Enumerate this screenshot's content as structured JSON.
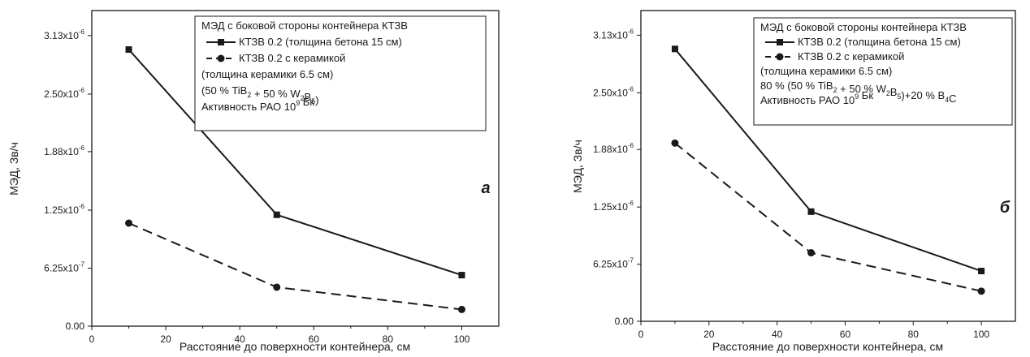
{
  "chart_data": [
    {
      "type": "line",
      "panel_label": "а",
      "xlabel": "Расстояние до поверхности контейнера, см",
      "ylabel": "МЭД, Зв/ч",
      "xlim": [
        0,
        110
      ],
      "ylim": [
        0,
        3.4e-06
      ],
      "x_ticks": [
        0,
        20,
        40,
        60,
        80,
        100
      ],
      "y_ticks": [
        0,
        6.25e-07,
        1.25e-06,
        1.88e-06,
        2.5e-06,
        3.13e-06
      ],
      "y_tick_mantissa": [
        "0.00",
        "6.25x10",
        "1.25x10",
        "1.88x10",
        "2.50x10",
        "3.13x10"
      ],
      "y_tick_exponent": [
        "",
        "-7",
        "-6",
        "-6",
        "-6",
        "-6"
      ],
      "legend_title": "МЭД с боковой стороны контейнера КТЗВ",
      "legend_extra": [
        [
          "(толщина керамики 6.5 см)"
        ],
        [
          "(50 % TiB",
          "2",
          " + 50 % W",
          "2",
          "B",
          "5",
          ")"
        ],
        [
          "Активность РАО 10",
          "9",
          " Бк"
        ]
      ],
      "series": [
        {
          "name": "КТЗВ 0.2 (толщина бетона 15 см)",
          "marker": "square",
          "dash": "solid",
          "x": [
            10,
            50,
            100
          ],
          "y": [
            2.98e-06,
            1.2e-06,
            5.5e-07
          ]
        },
        {
          "name": "КТЗВ 0.2 с керамикой",
          "marker": "circle",
          "dash": "dashed",
          "x": [
            10,
            50,
            100
          ],
          "y": [
            1.11e-06,
            4.2e-07,
            1.8e-07
          ]
        }
      ]
    },
    {
      "type": "line",
      "panel_label": "б",
      "xlabel": "Расстояние до поверхности контейнера, см",
      "ylabel": "МЭД, Зв/ч",
      "xlim": [
        0,
        110
      ],
      "ylim": [
        0,
        3.4e-06
      ],
      "x_ticks": [
        0,
        20,
        40,
        60,
        80,
        100
      ],
      "y_ticks": [
        0,
        6.25e-07,
        1.25e-06,
        1.88e-06,
        2.5e-06,
        3.13e-06
      ],
      "y_tick_mantissa": [
        "0.00",
        "6.25x10",
        "1.25x10",
        "1.88x10",
        "2.50x10",
        "3.13x10"
      ],
      "y_tick_exponent": [
        "",
        "-7",
        "-6",
        "-6",
        "-6",
        "-6"
      ],
      "legend_title": "МЭД с боковой стороны контейнера КТЗВ",
      "legend_extra": [
        [
          "(толщина керамики 6.5 см)"
        ],
        [
          "80 % (50 % TiB",
          "2",
          " + 50 % W",
          "2",
          "B",
          "5",
          ")+20 % B",
          "4",
          "C"
        ],
        [
          "Активность РАО 10",
          "9",
          " Бк"
        ]
      ],
      "series": [
        {
          "name": "КТЗВ 0.2 (толщина бетона 15 см)",
          "marker": "square",
          "dash": "solid",
          "x": [
            10,
            50,
            100
          ],
          "y": [
            2.98e-06,
            1.2e-06,
            5.5e-07
          ]
        },
        {
          "name": "КТЗВ 0.2 с керамикой",
          "marker": "circle",
          "dash": "dashed",
          "x": [
            10,
            50,
            100
          ],
          "y": [
            1.95e-06,
            7.5e-07,
            3.3e-07
          ]
        }
      ]
    }
  ]
}
